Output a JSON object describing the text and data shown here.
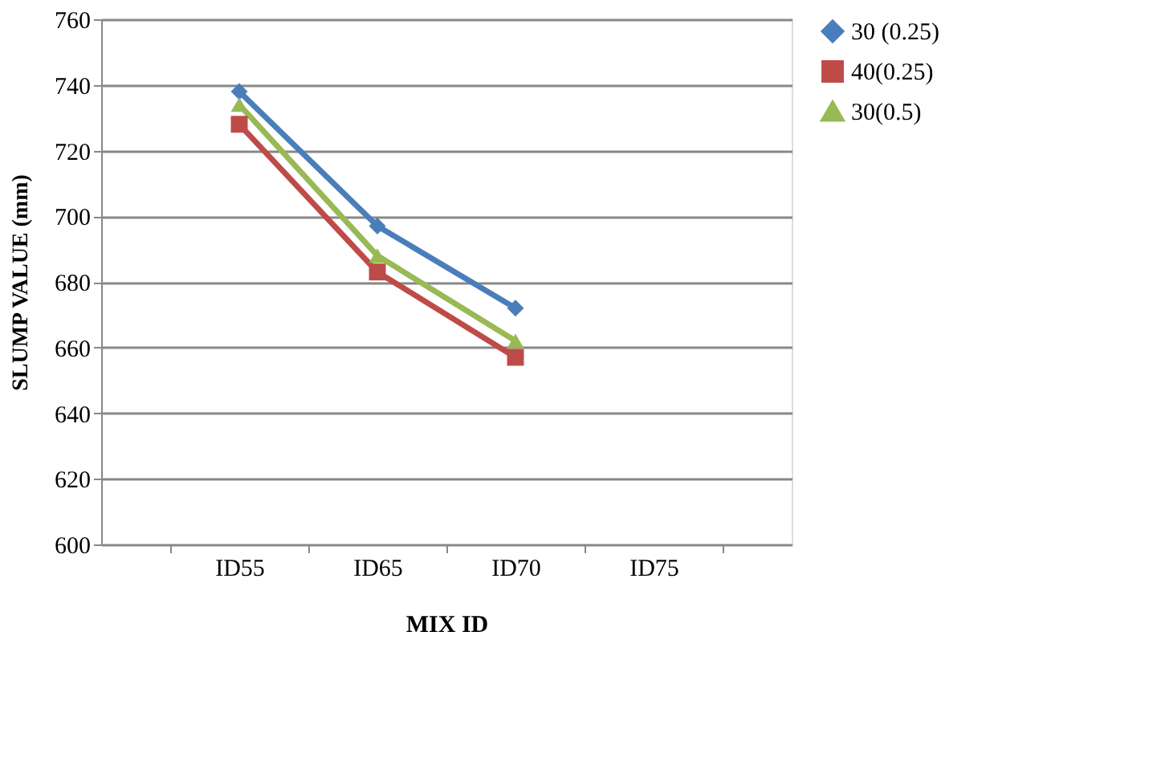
{
  "chart_data": {
    "type": "line",
    "xlabel": "MIX ID",
    "ylabel": "SLUMP VALUE (mm)",
    "categories": [
      "ID55",
      "ID65",
      "ID70",
      "ID75"
    ],
    "series": [
      {
        "name": "30 (0.25)",
        "color": "#4a7ebb",
        "marker": "diamond",
        "values": [
          738,
          697,
          672,
          null
        ]
      },
      {
        "name": "40(0.25)",
        "color": "#be4b48",
        "marker": "square",
        "values": [
          728,
          683,
          657,
          null
        ]
      },
      {
        "name": "30(0.5)",
        "color": "#98b954",
        "marker": "triangle",
        "values": [
          734,
          688,
          662,
          null
        ]
      }
    ],
    "ylim": [
      600,
      760
    ],
    "yticks": [
      600,
      620,
      640,
      660,
      680,
      700,
      720,
      740,
      760
    ],
    "grid": "y",
    "legend": "right",
    "line_style": "solid"
  }
}
